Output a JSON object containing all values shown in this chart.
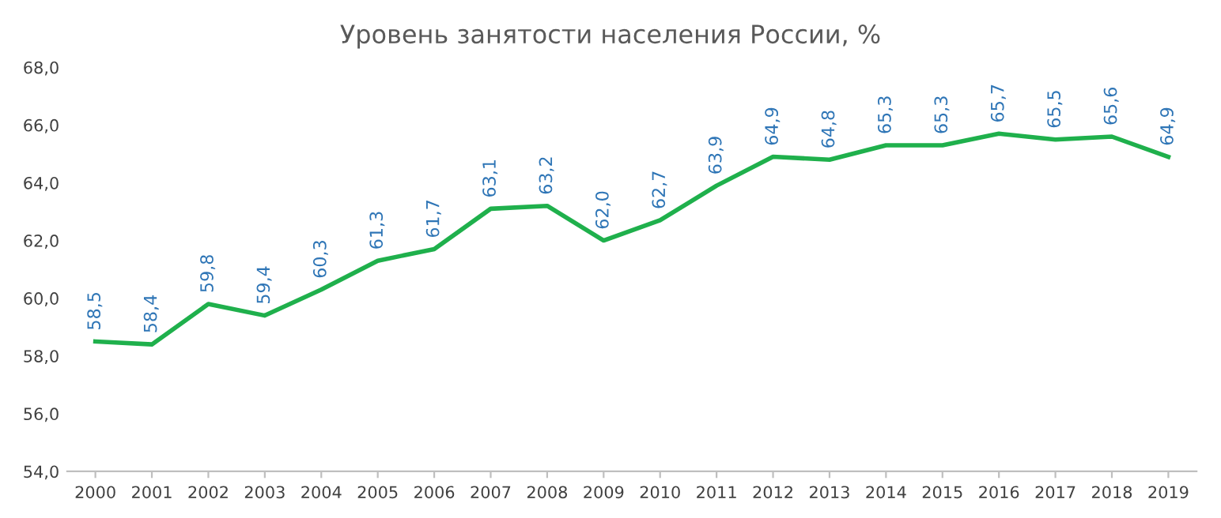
{
  "chart_data": {
    "type": "line",
    "title": "Уровень занятости населения России, %",
    "categories": [
      "2000",
      "2001",
      "2002",
      "2003",
      "2004",
      "2005",
      "2006",
      "2007",
      "2008",
      "2009",
      "2010",
      "2011",
      "2012",
      "2013",
      "2014",
      "2015",
      "2016",
      "2017",
      "2018",
      "2019"
    ],
    "series": [
      {
        "color": "#1fb04c",
        "values": [
          58.5,
          58.4,
          59.8,
          59.4,
          60.3,
          61.3,
          61.7,
          63.1,
          63.2,
          62.0,
          62.7,
          63.9,
          64.9,
          64.8,
          65.3,
          65.3,
          65.7,
          65.5,
          65.6,
          64.9
        ],
        "value_labels": [
          "58,5",
          "58,4",
          "59,8",
          "59,4",
          "60,3",
          "61,3",
          "61,7",
          "63,1",
          "63,2",
          "62,0",
          "62,7",
          "63,9",
          "64,9",
          "64,8",
          "65,3",
          "65,3",
          "65,7",
          "65,5",
          "65,6",
          "64,9"
        ]
      }
    ],
    "ylim": [
      54,
      68
    ],
    "yticks": [
      {
        "value": 54,
        "label": "54,0"
      },
      {
        "value": 56,
        "label": "56,0"
      },
      {
        "value": 58,
        "label": "58,0"
      },
      {
        "value": 60,
        "label": "60,0"
      },
      {
        "value": 62,
        "label": "62,0"
      },
      {
        "value": 64,
        "label": "64,0"
      },
      {
        "value": 66,
        "label": "66,0"
      },
      {
        "value": 68,
        "label": "68,0"
      }
    ],
    "grid": false,
    "marker": "none",
    "line_style": "solid",
    "legend": false
  }
}
